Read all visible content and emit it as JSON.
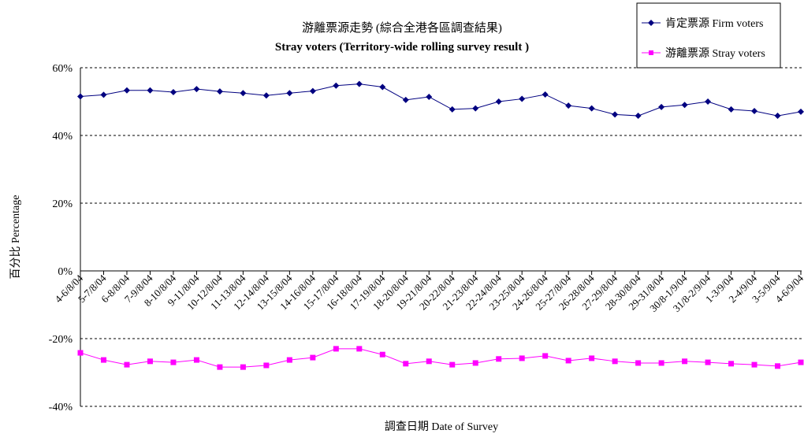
{
  "chart_data": {
    "type": "line",
    "title": "游離票源走勢 (綜合全港各區調查結果)",
    "subtitle": "Stray voters (Territory-wide rolling survey result )",
    "xlabel": "調查日期 Date of Survey",
    "ylabel": "百分比 Percentage",
    "ylim": [
      -40,
      60
    ],
    "yticks": [
      60,
      40,
      20,
      0,
      -20,
      -40
    ],
    "ytick_labels": [
      "60%",
      "40%",
      "20%",
      "0%",
      "-20%",
      "-40%"
    ],
    "grid": "horizontal dashed",
    "legend_position": "top-right",
    "categories": [
      "4-6/8/04",
      "5-7/8/04",
      "6-8/8/04",
      "7-9/8/04",
      "8-10/8/04",
      "9-11/8/04",
      "10-12/8/04",
      "11-13/8/04",
      "12-14/8/04",
      "13-15/8/04",
      "14-16/8/04",
      "15-17/8/04",
      "16-18/8/04",
      "17-19/8/04",
      "18-20/8/04",
      "19-21/8/04",
      "20-22/8/04",
      "21-23/8/04",
      "22-24/8/04",
      "23-25/8/04",
      "24-26/8/04",
      "25-27/8/04",
      "26-28/8/04",
      "27-29/8/04",
      "28-30/8/04",
      "29-31/8/04",
      "30/8-1/9/04",
      "31/8-2/9/04",
      "1-3/9/04",
      "2-4/9/04",
      "3-5/9/04",
      "4-6/9/04"
    ],
    "series": [
      {
        "name": "肯定票源 Firm voters",
        "color": "#000080",
        "marker": "diamond",
        "values": [
          51.5,
          52,
          53.3,
          53.3,
          52.8,
          53.7,
          53,
          52.5,
          51.8,
          52.5,
          53.1,
          54.7,
          55.2,
          54.3,
          50.5,
          51.4,
          47.7,
          48,
          50,
          50.8,
          52.1,
          48.8,
          48,
          46.2,
          45.8,
          48.4,
          49,
          50,
          47.7,
          47.2,
          45.8,
          47
        ]
      },
      {
        "name": "游離票源 Stray voters",
        "color": "#ff00ff",
        "marker": "square",
        "values": [
          -24.2,
          -26.3,
          -27.7,
          -26.7,
          -27,
          -26.3,
          -28.4,
          -28.4,
          -27.9,
          -26.3,
          -25.6,
          -23,
          -23,
          -24.7,
          -27.4,
          -26.7,
          -27.7,
          -27.2,
          -26,
          -25.8,
          -25.1,
          -26.5,
          -25.8,
          -26.7,
          -27.2,
          -27.2,
          -26.7,
          -27,
          -27.4,
          -27.7,
          -28.1,
          -27
        ]
      }
    ]
  }
}
